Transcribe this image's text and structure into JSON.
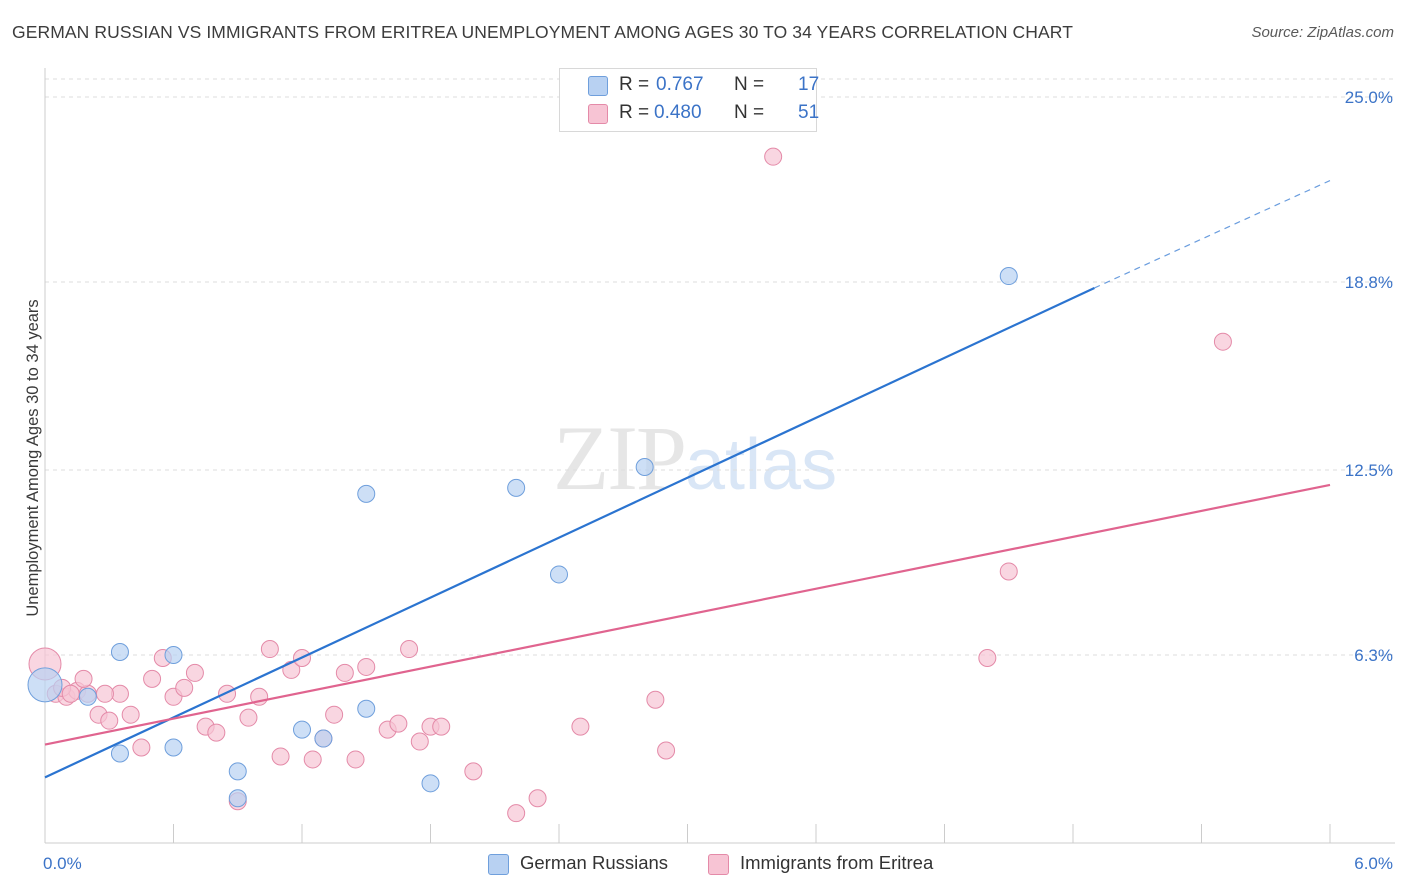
{
  "header": {
    "title": "GERMAN RUSSIAN VS IMMIGRANTS FROM ERITREA UNEMPLOYMENT AMONG AGES 30 TO 34 YEARS CORRELATION CHART",
    "source": "Source: ZipAtlas.com"
  },
  "watermark": {
    "zip": "ZIP",
    "atlas": "atlas"
  },
  "legend": {
    "r_label": "R =",
    "n_label": "N =",
    "series1": {
      "r": "0.767",
      "n": "17"
    },
    "series2": {
      "r": "0.480",
      "n": "51"
    }
  },
  "bottom_legend": {
    "series1": "German Russians",
    "series2": "Immigrants from Eritrea"
  },
  "colors": {
    "blue_fill": "#b8d1f2",
    "blue_stroke": "#6f9fdc",
    "blue_line": "#2b74d0",
    "pink_fill": "#f7c4d4",
    "pink_stroke": "#e48aa8",
    "pink_line": "#e0648f",
    "grid": "#dddddd",
    "axis": "#cccccc",
    "tick_text": "#3b73c7"
  },
  "chart_data": {
    "type": "scatter",
    "title": "GERMAN RUSSIAN VS IMMIGRANTS FROM ERITREA UNEMPLOYMENT AMONG AGES 30 TO 34 YEARS CORRELATION CHART",
    "xlabel": "",
    "ylabel": "Unemployment Among Ages 30 to 34 years",
    "xlim": [
      0,
      6.0
    ],
    "ylim": [
      0,
      25.0
    ],
    "x_tick_labels": [
      "0.0%",
      "6.0%"
    ],
    "y_ticks": [
      6.3,
      12.5,
      18.8,
      25.0
    ],
    "y_tick_labels": [
      "6.3%",
      "12.5%",
      "18.8%",
      "25.0%"
    ],
    "series": [
      {
        "name": "German Russians",
        "r": 0.767,
        "n": 17,
        "points": [
          [
            0.0,
            5.3
          ],
          [
            0.2,
            4.9
          ],
          [
            0.35,
            6.4
          ],
          [
            0.6,
            6.3
          ],
          [
            0.35,
            3.0
          ],
          [
            0.6,
            3.2
          ],
          [
            0.9,
            2.4
          ],
          [
            0.9,
            1.5
          ],
          [
            1.2,
            3.8
          ],
          [
            1.3,
            3.5
          ],
          [
            1.5,
            4.5
          ],
          [
            1.5,
            11.7
          ],
          [
            1.8,
            2.0
          ],
          [
            2.2,
            11.9
          ],
          [
            2.4,
            9.0
          ],
          [
            2.8,
            12.6
          ],
          [
            4.5,
            19.0
          ]
        ],
        "trend": {
          "x0": 0.0,
          "y0": 2.2,
          "x1": 4.9,
          "y1": 18.6,
          "dash_to_x": 6.0,
          "dash_to_y": 22.2
        }
      },
      {
        "name": "Immigrants from Eritrea",
        "r": 0.48,
        "n": 51,
        "points": [
          [
            0.0,
            6.0
          ],
          [
            0.05,
            5.0
          ],
          [
            0.1,
            4.9
          ],
          [
            0.15,
            5.1
          ],
          [
            0.2,
            5.0
          ],
          [
            0.25,
            4.3
          ],
          [
            0.3,
            4.1
          ],
          [
            0.35,
            5.0
          ],
          [
            0.4,
            4.3
          ],
          [
            0.45,
            3.2
          ],
          [
            0.5,
            5.5
          ],
          [
            0.55,
            6.2
          ],
          [
            0.6,
            4.9
          ],
          [
            0.65,
            5.2
          ],
          [
            0.7,
            5.7
          ],
          [
            0.75,
            3.9
          ],
          [
            0.8,
            3.7
          ],
          [
            0.85,
            5.0
          ],
          [
            0.9,
            1.4
          ],
          [
            0.95,
            4.2
          ],
          [
            1.0,
            4.9
          ],
          [
            1.05,
            6.5
          ],
          [
            1.1,
            2.9
          ],
          [
            1.15,
            5.8
          ],
          [
            1.2,
            6.2
          ],
          [
            1.25,
            2.8
          ],
          [
            1.3,
            3.5
          ],
          [
            1.35,
            4.3
          ],
          [
            1.4,
            5.7
          ],
          [
            1.45,
            2.8
          ],
          [
            1.5,
            5.9
          ],
          [
            1.6,
            3.8
          ],
          [
            1.65,
            4.0
          ],
          [
            1.7,
            6.5
          ],
          [
            1.75,
            3.4
          ],
          [
            1.8,
            3.9
          ],
          [
            1.85,
            3.9
          ],
          [
            2.0,
            2.4
          ],
          [
            2.2,
            1.0
          ],
          [
            2.3,
            1.5
          ],
          [
            2.5,
            3.9
          ],
          [
            0.08,
            5.2
          ],
          [
            0.18,
            5.5
          ],
          [
            0.28,
            5.0
          ],
          [
            0.12,
            5.0
          ],
          [
            2.85,
            4.8
          ],
          [
            2.9,
            3.1
          ],
          [
            3.4,
            23.0
          ],
          [
            4.4,
            6.2
          ],
          [
            4.5,
            9.1
          ],
          [
            5.5,
            16.8
          ]
        ],
        "trend": {
          "x0": 0.0,
          "y0": 3.3,
          "x1": 6.0,
          "y1": 12.0
        }
      }
    ]
  }
}
